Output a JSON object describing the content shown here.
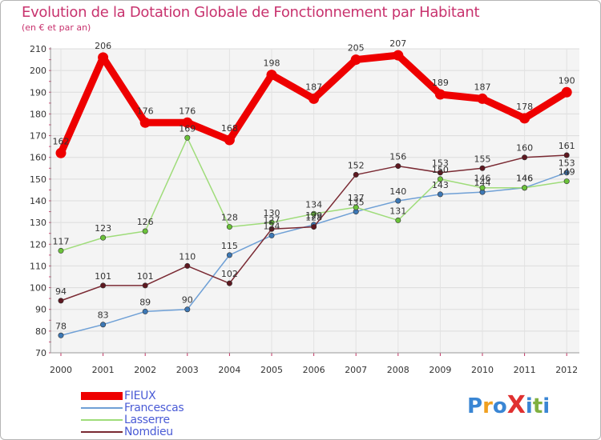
{
  "title": "Evolution de la Dotation Globale de Fonctionnement par Habitant",
  "subtitle": "(en € et par an)",
  "logo": {
    "text": "ProXiti",
    "letters": [
      "P",
      "r",
      "o",
      "X",
      "i",
      "t",
      "i"
    ],
    "colors": [
      "#3a86d4",
      "#f0a020",
      "#3a86d4",
      "#e03030",
      "#3a86d4",
      "#80b040",
      "#3a86d4"
    ]
  },
  "chart_data": {
    "type": "line",
    "title": "Evolution de la Dotation Globale de Fonctionnement par Habitant",
    "ylabel": "(en € et par an)",
    "xlabel": "",
    "ylim": [
      70,
      210
    ],
    "yticks": [
      70,
      80,
      90,
      100,
      110,
      120,
      130,
      140,
      150,
      160,
      170,
      180,
      190,
      200,
      210
    ],
    "x": [
      "2000",
      "2001",
      "2002",
      "2003",
      "2004",
      "2005",
      "2006",
      "2007",
      "2008",
      "2009",
      "2010",
      "2011",
      "2012"
    ],
    "grid": true,
    "legend_position": "bottom-left",
    "series": [
      {
        "name": "FIEUX",
        "values": [
          162,
          206,
          176,
          176,
          168,
          198,
          187,
          205,
          207,
          189,
          187,
          178,
          190
        ],
        "color": "#ee0000",
        "dot": "#ee0000",
        "bold": true
      },
      {
        "name": "Francescas",
        "values": [
          78,
          83,
          89,
          90,
          115,
          124,
          129,
          135,
          140,
          143,
          144,
          146,
          153
        ],
        "color": "#6fa0d6",
        "dot": "#3d78b5",
        "bold": false
      },
      {
        "name": "Lasserre",
        "values": [
          117,
          123,
          126,
          169,
          128,
          130,
          134,
          137,
          131,
          150,
          146,
          146,
          149
        ],
        "color": "#9fdc7a",
        "dot": "#6bc23a",
        "bold": false
      },
      {
        "name": "Nomdieu",
        "values": [
          94,
          101,
          101,
          110,
          102,
          127,
          128,
          152,
          156,
          153,
          155,
          160,
          161
        ],
        "color": "#7a2a33",
        "dot": "#5e1820",
        "bold": false
      }
    ]
  }
}
